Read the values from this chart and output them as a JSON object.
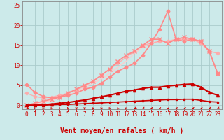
{
  "title": "",
  "xlabel": "Vent moyen/en rafales ( km/h )",
  "bg_color": "#cceaea",
  "grid_color": "#aacccc",
  "x_ticks": [
    0,
    1,
    2,
    3,
    4,
    5,
    6,
    7,
    8,
    9,
    10,
    11,
    12,
    13,
    14,
    15,
    16,
    17,
    18,
    19,
    20,
    21,
    22,
    23
  ],
  "ylim": [
    -1,
    26
  ],
  "xlim": [
    -0.5,
    23.5
  ],
  "yticks": [
    0,
    5,
    10,
    15,
    20,
    25
  ],
  "series": [
    {
      "x": [
        0,
        1,
        2,
        3,
        4,
        5,
        6,
        7,
        8,
        9,
        10,
        11,
        12,
        13,
        14,
        15,
        16,
        17,
        18,
        19,
        20,
        21,
        22,
        23
      ],
      "y": [
        0.0,
        0.0,
        0.0,
        0.1,
        0.2,
        0.2,
        0.3,
        0.4,
        0.5,
        0.6,
        0.7,
        0.8,
        0.9,
        1.0,
        1.1,
        1.2,
        1.3,
        1.4,
        1.4,
        1.5,
        1.5,
        1.2,
        0.9,
        0.8
      ],
      "color": "#cc0000",
      "lw": 1.2,
      "marker": "s",
      "ms": 2,
      "alpha": 1.0,
      "zorder": 5
    },
    {
      "x": [
        0,
        1,
        2,
        3,
        4,
        5,
        6,
        7,
        8,
        9,
        10,
        11,
        12,
        13,
        14,
        15,
        16,
        17,
        18,
        19,
        20,
        21,
        22,
        23
      ],
      "y": [
        0.0,
        0.0,
        0.1,
        0.3,
        0.5,
        0.7,
        1.0,
        1.3,
        1.7,
        2.1,
        2.5,
        3.0,
        3.5,
        3.8,
        4.2,
        4.5,
        4.5,
        4.8,
        5.0,
        5.2,
        5.3,
        4.5,
        3.2,
        2.5
      ],
      "color": "#cc0000",
      "lw": 1.5,
      "marker": "^",
      "ms": 3,
      "alpha": 1.0,
      "zorder": 5
    },
    {
      "x": [
        0,
        1,
        2,
        3,
        4,
        5,
        6,
        7,
        8,
        9,
        10,
        11,
        12,
        13,
        14,
        15,
        16,
        17,
        18,
        19,
        20,
        21,
        22,
        23
      ],
      "y": [
        5.2,
        3.2,
        2.2,
        1.8,
        2.0,
        2.5,
        3.0,
        4.0,
        4.5,
        5.5,
        7.0,
        8.5,
        9.5,
        10.5,
        12.5,
        15.5,
        19.0,
        23.5,
        16.5,
        16.0,
        16.5,
        16.0,
        13.5,
        8.0
      ],
      "color": "#ff8888",
      "lw": 1.2,
      "marker": "D",
      "ms": 2.5,
      "alpha": 1.0,
      "zorder": 4
    },
    {
      "x": [
        0,
        1,
        2,
        3,
        4,
        5,
        6,
        7,
        8,
        9,
        10,
        11,
        12,
        13,
        14,
        15,
        16,
        17,
        18,
        19,
        20,
        21,
        22,
        23
      ],
      "y": [
        0.0,
        0.5,
        1.0,
        1.5,
        2.0,
        3.0,
        4.0,
        5.0,
        6.0,
        7.5,
        9.0,
        11.0,
        12.5,
        13.5,
        15.0,
        16.5,
        16.5,
        15.5,
        16.5,
        17.0,
        16.5,
        16.0,
        13.5,
        8.0
      ],
      "color": "#ff8888",
      "lw": 1.2,
      "marker": "x",
      "ms": 4,
      "alpha": 1.0,
      "zorder": 4
    },
    {
      "x": [
        0,
        1,
        2,
        3,
        4,
        5,
        6,
        7,
        8,
        9,
        10,
        11,
        12,
        13,
        14,
        15,
        16,
        17,
        18,
        19,
        20,
        21,
        22,
        23
      ],
      "y": [
        3.0,
        2.2,
        1.8,
        2.0,
        2.5,
        3.0,
        3.8,
        4.8,
        6.0,
        7.5,
        9.0,
        10.5,
        12.0,
        13.5,
        15.0,
        15.5,
        16.0,
        16.0,
        16.5,
        16.5,
        16.5,
        15.5,
        13.5,
        13.0
      ],
      "color": "#ffaaaa",
      "lw": 1.0,
      "marker": "D",
      "ms": 2.5,
      "alpha": 0.9,
      "zorder": 3
    },
    {
      "x": [
        0,
        1,
        2,
        3,
        4,
        5,
        6,
        7,
        8,
        9,
        10,
        11,
        12,
        13,
        14,
        15,
        16,
        17,
        18,
        19,
        20,
        21,
        22,
        23
      ],
      "y": [
        0.0,
        0.3,
        0.8,
        1.2,
        1.8,
        2.5,
        3.2,
        4.5,
        5.5,
        6.5,
        8.0,
        9.5,
        11.0,
        13.0,
        14.5,
        15.5,
        16.0,
        16.0,
        16.5,
        16.5,
        16.5,
        15.5,
        13.5,
        13.0
      ],
      "color": "#ffcccc",
      "lw": 1.0,
      "marker": null,
      "ms": 0,
      "alpha": 1.0,
      "zorder": 2
    }
  ],
  "arrow_color": "#cc0000",
  "xlabel_color": "#cc0000",
  "xlabel_fontsize": 7,
  "tick_color": "#cc0000",
  "tick_fontsize": 5.5
}
